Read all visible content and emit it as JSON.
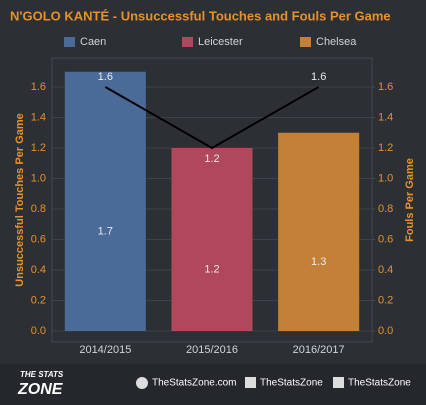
{
  "chart_data": {
    "type": "bar",
    "title": "N'GOLO KANTÉ  - Unsuccessful Touches and Fouls Per Game",
    "categories": [
      "2014/2015",
      "2015/2016",
      "2016/2017"
    ],
    "legend": [
      "Caen",
      "Leicester",
      "Chelsea"
    ],
    "colors": [
      "#4a6a98",
      "#b0475a",
      "#c47f38"
    ],
    "series": [
      {
        "type": "bar",
        "values": [
          1.7,
          1.2,
          1.3
        ]
      },
      {
        "type": "line",
        "axis": "y2",
        "color": "#000000",
        "values": [
          1.6,
          1.2,
          1.6
        ]
      }
    ],
    "y_label": "Unsuccessful Touches Per Game",
    "y2_label": "Fouls Per Game",
    "ylim": [
      0,
      1.8
    ],
    "yticks": [
      {
        "value": 0,
        "label": "0.0"
      },
      0.2,
      0.4,
      0.6,
      0.8,
      {
        "value": 1,
        "label": "1.0"
      },
      1.2,
      1.4,
      1.6
    ],
    "y2lim": [
      0,
      1.8
    ],
    "y2ticks": [
      {
        "value": 0,
        "label": "0.0"
      },
      0.2,
      0.4,
      0.6,
      0.8,
      {
        "value": 1,
        "label": "1.0"
      },
      1.2,
      1.4,
      1.6
    ],
    "grid": true
  },
  "footer": {
    "logo_top": "THE STATS",
    "logo_bottom": "ZONE",
    "links": [
      "TheStatsZone.com",
      "TheStatsZone",
      "TheStatsZone"
    ]
  }
}
